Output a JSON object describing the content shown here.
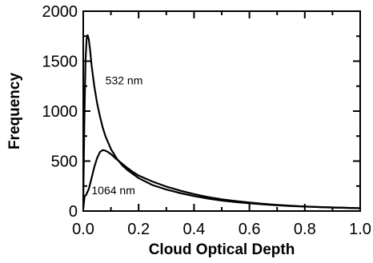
{
  "chart_data": {
    "type": "line",
    "xlabel": "Cloud Optical Depth",
    "ylabel": "Frequency",
    "xlim": [
      0.0,
      1.0
    ],
    "ylim": [
      0,
      2000
    ],
    "xticks": [
      "0.0",
      "0.2",
      "0.4",
      "0.6",
      "0.8",
      "1.0"
    ],
    "yticks": [
      "0",
      "500",
      "1000",
      "1500",
      "2000"
    ],
    "grid": false,
    "series": [
      {
        "name": "532 nm",
        "x": [
          0.0,
          0.004,
          0.008,
          0.012,
          0.016,
          0.02,
          0.025,
          0.03,
          0.04,
          0.05,
          0.06,
          0.07,
          0.08,
          0.1,
          0.12,
          0.14,
          0.16,
          0.18,
          0.2,
          0.25,
          0.3,
          0.35,
          0.4,
          0.45,
          0.5,
          0.55,
          0.6,
          0.65,
          0.7,
          0.75,
          0.8,
          0.85,
          0.9,
          0.95,
          1.0
        ],
        "y": [
          100,
          900,
          1500,
          1720,
          1760,
          1720,
          1600,
          1460,
          1250,
          1080,
          950,
          840,
          750,
          620,
          530,
          460,
          410,
          370,
          330,
          260,
          215,
          180,
          150,
          125,
          105,
          90,
          78,
          67,
          58,
          50,
          45,
          40,
          35,
          32,
          28
        ]
      },
      {
        "name": "1064 nm",
        "x": [
          0.0,
          0.005,
          0.01,
          0.02,
          0.03,
          0.04,
          0.05,
          0.06,
          0.07,
          0.08,
          0.09,
          0.1,
          0.12,
          0.14,
          0.16,
          0.18,
          0.2,
          0.25,
          0.3,
          0.35,
          0.4,
          0.45,
          0.5,
          0.55,
          0.6,
          0.65,
          0.7,
          0.75,
          0.8,
          0.85,
          0.9,
          0.95,
          1.0
        ],
        "y": [
          20,
          150,
          160,
          220,
          330,
          440,
          530,
          590,
          610,
          605,
          590,
          570,
          520,
          475,
          430,
          390,
          355,
          295,
          245,
          205,
          170,
          140,
          118,
          100,
          85,
          72,
          62,
          53,
          46,
          40,
          36,
          32,
          28
        ]
      }
    ],
    "annotations": [
      {
        "text": "532 nm",
        "x": 0.08,
        "y": 1270
      },
      {
        "text": "1064 nm",
        "x": 0.03,
        "y": 170
      }
    ]
  }
}
